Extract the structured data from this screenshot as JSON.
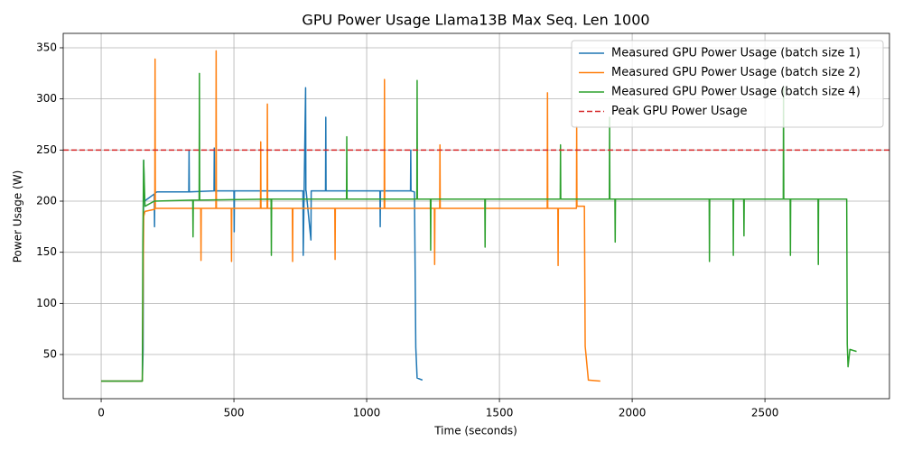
{
  "chart_data": {
    "type": "line",
    "title": "GPU Power Usage Llama13B Max Seq. Len 1000",
    "x_label": "Time (seconds)",
    "y_label": "Power Usage (W)",
    "xlim": [
      -143,
      2969
    ],
    "ylim": [
      6.8,
      364.1
    ],
    "xticks": [
      0,
      500,
      1000,
      1500,
      2000,
      2500
    ],
    "yticks": [
      50,
      100,
      150,
      200,
      250,
      300,
      350
    ],
    "grid": true,
    "legend": "upper right",
    "series": [
      {
        "name": "Measured GPU Power Usage (batch size 1)",
        "color": "#1f77b4",
        "x": [
          0,
          155,
          158,
          160,
          163,
          200,
          201,
          202,
          203,
          210,
          330,
          331,
          332,
          425,
          426,
          427,
          500,
          501,
          502,
          760,
          761,
          770,
          771,
          772,
          790,
          791,
          792,
          845,
          846,
          847,
          1050,
          1051,
          1052,
          1165,
          1166,
          1167,
          1180,
          1185,
          1190,
          1210
        ],
        "values": [
          24,
          24,
          55,
          240,
          200,
          207,
          175,
          207,
          208,
          209,
          209,
          250,
          209,
          210,
          252,
          210,
          210,
          170,
          210,
          210,
          147,
          311,
          210,
          210,
          162,
          210,
          210,
          210,
          282,
          210,
          210,
          175,
          210,
          210,
          250,
          210,
          209,
          57,
          27,
          25
        ]
      },
      {
        "name": "Measured GPU Power Usage (batch size 2)",
        "color": "#ff7f0e",
        "x": [
          0,
          155,
          160,
          165,
          200,
          202,
          203,
          204,
          375,
          376,
          377,
          432,
          433,
          434,
          490,
          491,
          492,
          600,
          601,
          602,
          625,
          626,
          627,
          720,
          721,
          722,
          880,
          881,
          882,
          1066,
          1067,
          1068,
          1255,
          1256,
          1257,
          1275,
          1276,
          1277,
          1680,
          1681,
          1682,
          1720,
          1721,
          1722,
          1790,
          1791,
          1792,
          1820,
          1823,
          1835,
          1880
        ],
        "values": [
          24,
          24,
          185,
          190,
          192,
          192,
          339,
          193,
          193,
          142,
          193,
          193,
          347,
          193,
          193,
          141,
          193,
          193,
          258,
          193,
          193,
          295,
          193,
          193,
          141,
          193,
          193,
          143,
          193,
          193,
          319,
          193,
          193,
          138,
          193,
          193,
          255,
          193,
          193,
          306,
          193,
          193,
          137,
          193,
          193,
          273,
          195,
          195,
          58,
          25,
          24
        ]
      },
      {
        "name": "Measured GPU Power Usage (batch size 4)",
        "color": "#2ca02c",
        "x": [
          0,
          155,
          157,
          160,
          165,
          200,
          345,
          346,
          347,
          369,
          370,
          371,
          640,
          641,
          642,
          924,
          925,
          926,
          1189,
          1190,
          1191,
          1240,
          1241,
          1242,
          1445,
          1446,
          1447,
          1729,
          1730,
          1731,
          1914,
          1915,
          1916,
          1935,
          1936,
          1937,
          2290,
          2291,
          2292,
          2380,
          2381,
          2382,
          2420,
          2421,
          2422,
          2569,
          2570,
          2571,
          2595,
          2596,
          2597,
          2700,
          2701,
          2702,
          2808,
          2810,
          2813,
          2820,
          2845
        ],
        "values": [
          24,
          24,
          160,
          240,
          195,
          200,
          201,
          165,
          201,
          201,
          325,
          201,
          202,
          147,
          202,
          202,
          263,
          202,
          202,
          318,
          202,
          202,
          152,
          202,
          202,
          155,
          202,
          202,
          255,
          202,
          202,
          282,
          202,
          202,
          160,
          202,
          202,
          141,
          202,
          202,
          147,
          202,
          202,
          166,
          202,
          202,
          312,
          202,
          202,
          147,
          202,
          202,
          138,
          202,
          202,
          60,
          38,
          55,
          53
        ]
      },
      {
        "name": "Peak GPU Power Usage",
        "color": "#d62728",
        "dashed": true,
        "x": [
          -143,
          2969
        ],
        "values": [
          250,
          250
        ]
      }
    ]
  }
}
